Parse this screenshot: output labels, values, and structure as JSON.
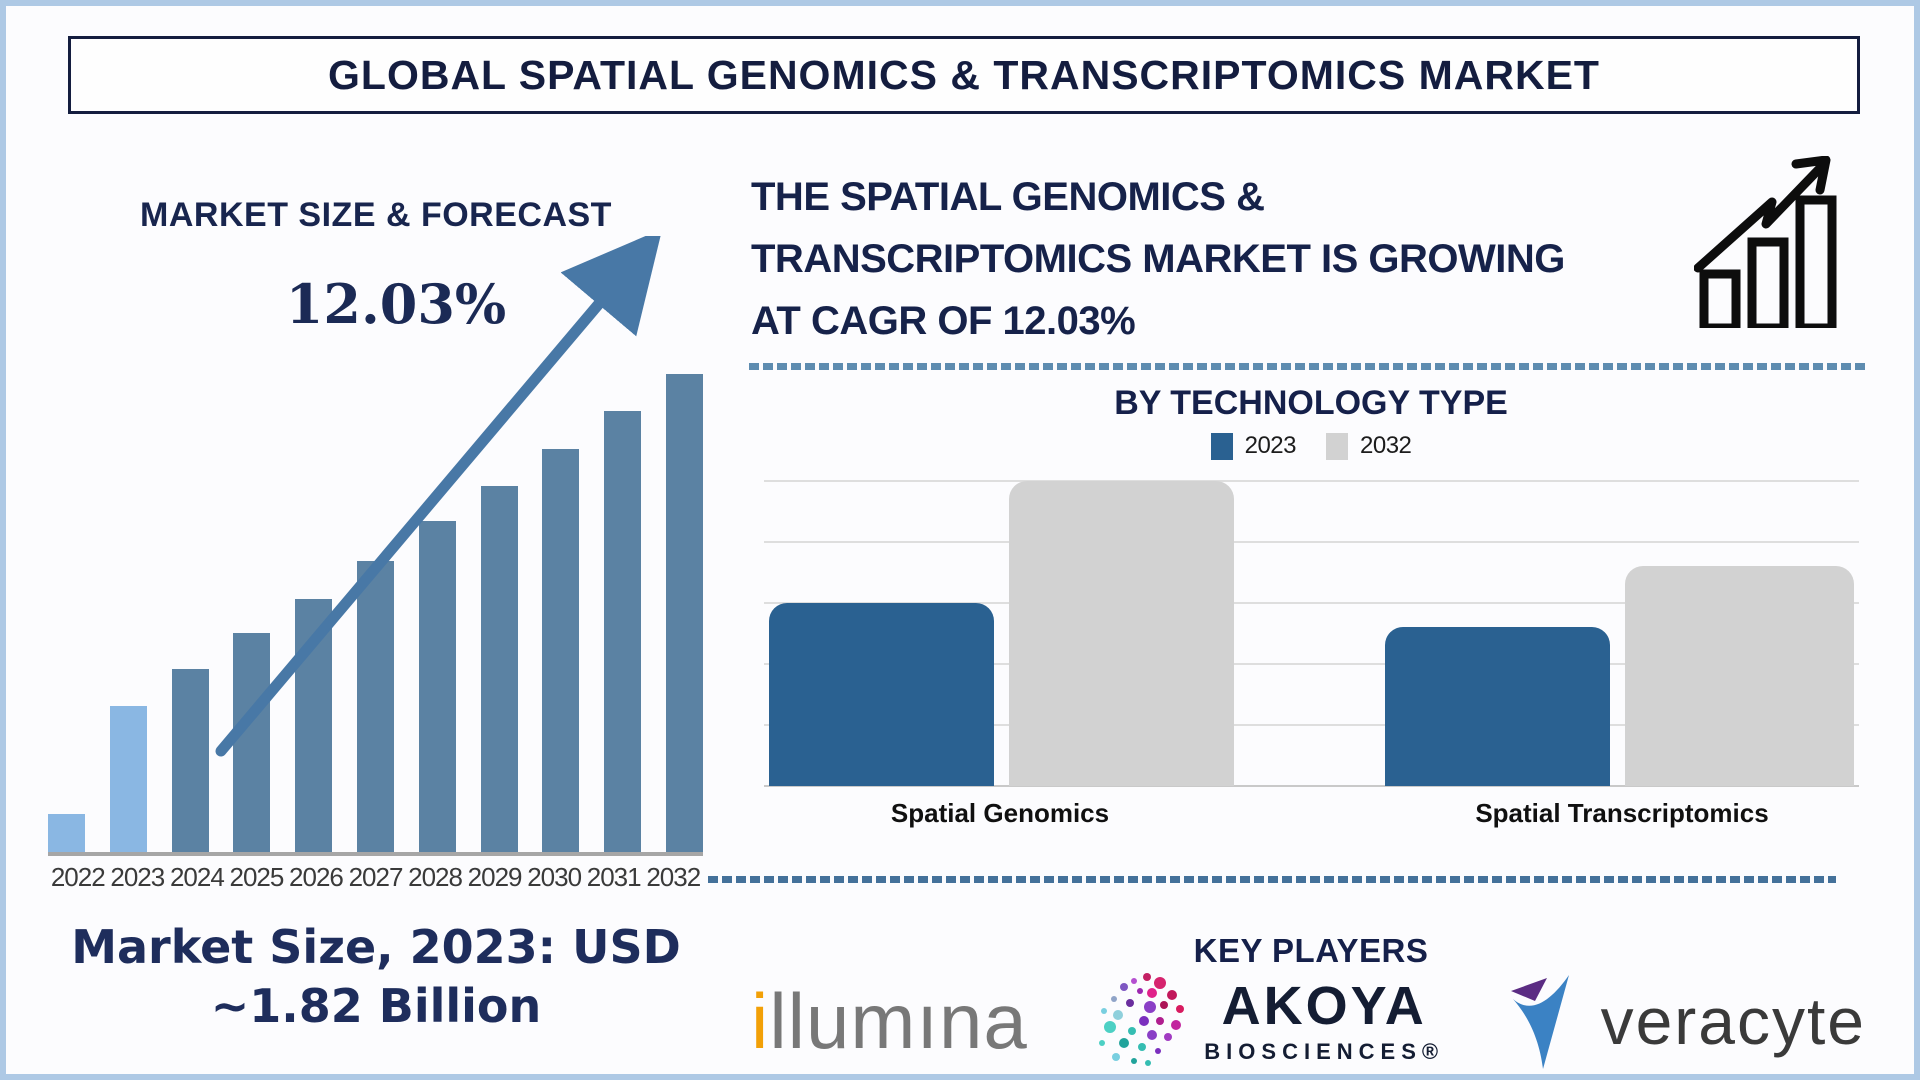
{
  "page": {
    "title_banner": "GLOBAL SPATIAL GENOMICS & TRANSCRIPTOMICS MARKET"
  },
  "left_panel": {
    "heading": "MARKET SIZE & FORECAST",
    "cagr_annotation": "12.03%",
    "caption_line1": "Market Size, 2023: USD",
    "caption_line2": "~1.82 Billion"
  },
  "right_panel": {
    "headline_lines": [
      "THE SPATIAL GENOMICS &",
      "TRANSCRIPTOMICS MARKET IS GROWING",
      "AT CAGR OF 12.03%"
    ],
    "tech_heading": "BY TECHNOLOGY TYPE",
    "key_players_heading": "KEY PLAYERS",
    "players": {
      "illumina": {
        "first_letter": "i",
        "rest": "llumına"
      },
      "akoya": {
        "word": "AKOYA",
        "sub": "BIOSCIENCES®"
      },
      "veracyte": {
        "word": "veracyte"
      }
    }
  },
  "colors": {
    "navy_text": "#16224a",
    "forecast_bar": "#5b82a3",
    "forecast_bar_highlight": "#8ab7e3",
    "trend_arrow": "#4878a6",
    "tech_bar_2023": "#2a6191",
    "tech_bar_2032": "#d2d2d2",
    "dashed_separator": "#5e8cb0",
    "frame_border": "#aec9e5",
    "illumina_orange": "#f2a007",
    "veracyte_blue": "#3b82c4",
    "veracyte_purple": "#5b2c83"
  },
  "chart_data": [
    {
      "type": "bar",
      "title": "MARKET SIZE & FORECAST",
      "categories": [
        "2022",
        "2023",
        "2024",
        "2025",
        "2026",
        "2027",
        "2028",
        "2029",
        "2030",
        "2031",
        "2032"
      ],
      "values": [
        8,
        30.5,
        38.3,
        45.8,
        52.9,
        60.9,
        69.2,
        76.6,
        84.3,
        92.3,
        100
      ],
      "units": "relative bar height, 2032 = 100 (no y-axis shown)",
      "known_point": "2023 = USD ~1.82 Billion",
      "annotation": "12.03% CAGR with rising trend arrow",
      "highlight": {
        "indexes": [
          0,
          1
        ],
        "color": "#8ab7e3"
      },
      "bar_color": "#5b82a3",
      "xlabel": "",
      "ylabel": "",
      "grid": false
    },
    {
      "type": "bar",
      "title": "BY TECHNOLOGY TYPE",
      "categories": [
        "Spatial Genomics",
        "Spatial Transcriptomics"
      ],
      "series": [
        {
          "name": "2023",
          "color": "#2a6191",
          "values": [
            3.0,
            2.6
          ]
        },
        {
          "name": "2032",
          "color": "#d2d2d2",
          "values": [
            5.0,
            3.6
          ]
        }
      ],
      "units": "relative to unlabeled gridlines (1 unit = 1 gridline step)",
      "ylim": [
        0,
        5
      ],
      "grid": true,
      "legend_position": "top"
    }
  ]
}
